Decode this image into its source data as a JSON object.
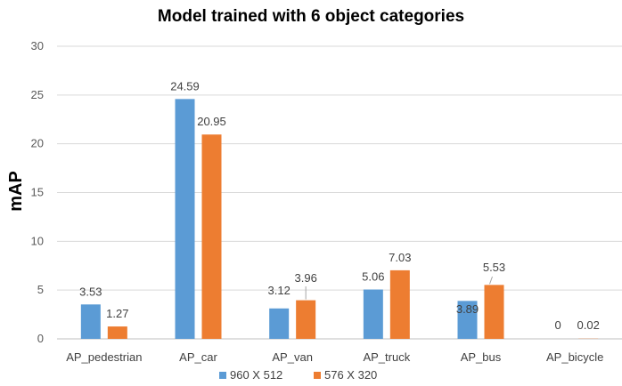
{
  "chart_data": {
    "type": "bar",
    "title": "Model trained with 6 object categories",
    "xlabel": "",
    "ylabel": "mAP",
    "ylim": [
      0,
      30
    ],
    "yticks": [
      0,
      5,
      10,
      15,
      20,
      25,
      30
    ],
    "grid": true,
    "legend_position": "bottom",
    "categories": [
      "AP_pedestrian",
      "AP_car",
      "AP_van",
      "AP_truck",
      "AP_bus",
      "AP_bicycle"
    ],
    "series": [
      {
        "name": "960 X 512",
        "color": "#5b9bd5",
        "values": [
          3.53,
          24.59,
          3.12,
          5.06,
          3.89,
          0
        ],
        "labels": [
          "3.53",
          "24.59",
          "3.12",
          "5.06",
          "3.89",
          "0"
        ]
      },
      {
        "name": "576 X 320",
        "color": "#ed7d31",
        "values": [
          1.27,
          20.95,
          3.96,
          7.03,
          5.53,
          0.02
        ],
        "labels": [
          "1.27",
          "20.95",
          "3.96",
          "7.03",
          "5.53",
          "0.02"
        ]
      }
    ]
  }
}
